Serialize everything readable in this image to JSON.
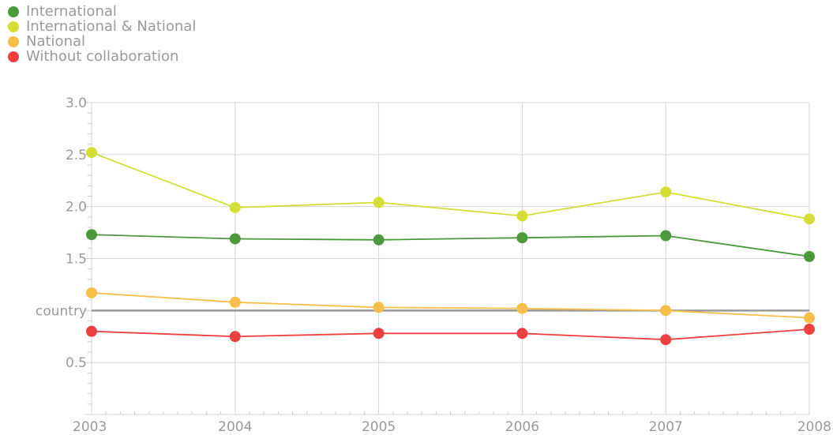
{
  "chart_data": {
    "type": "line",
    "x": [
      "2003",
      "2004",
      "2005",
      "2006",
      "2007",
      "2008"
    ],
    "series": [
      {
        "name": "International",
        "color": "#4a9a3c",
        "values": [
          1.73,
          1.69,
          1.68,
          1.7,
          1.72,
          1.52
        ]
      },
      {
        "name": "International & National",
        "color": "#d4de34",
        "values": [
          2.52,
          1.99,
          2.04,
          1.91,
          2.14,
          1.88
        ]
      },
      {
        "name": "National",
        "color": "#f7be4a",
        "values": [
          1.17,
          1.08,
          1.03,
          1.02,
          1.0,
          0.93
        ]
      },
      {
        "name": "Without collaboration",
        "color": "#ee4040",
        "values": [
          0.8,
          0.75,
          0.78,
          0.78,
          0.72,
          0.82
        ]
      }
    ],
    "ylim": [
      0.0,
      3.0
    ],
    "yticks": [
      "0.5",
      "1.5",
      "2.0",
      "2.5",
      "3.0"
    ],
    "reference_line": {
      "label": "country",
      "value": 1.0,
      "color": "#999999"
    },
    "grid": true,
    "legend_position": "top-left"
  }
}
